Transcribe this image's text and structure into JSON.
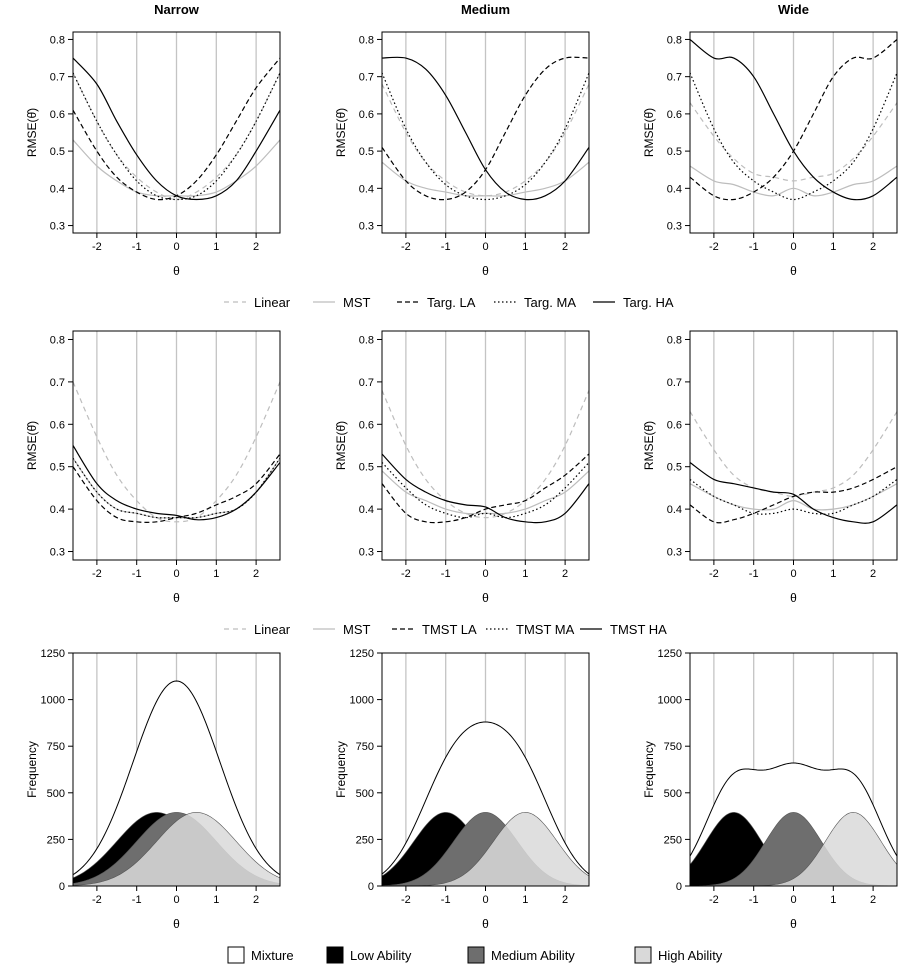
{
  "figure": {
    "column_titles": [
      "Narrow",
      "Medium",
      "Wide"
    ],
    "legend_row1": [
      "Linear",
      "MST",
      "Targ. LA",
      "Targ. MA",
      "Targ. HA"
    ],
    "legend_row2": [
      "Linear",
      "MST",
      "TMST LA",
      "TMST MA",
      "TMST HA"
    ],
    "legend_row3": [
      "Mixture",
      "Low Ability",
      "Medium Ability",
      "High Ability"
    ]
  },
  "chart_data": [
    {
      "type": "line",
      "row": 0,
      "col": 0,
      "title": "Narrow",
      "xlabel": "θ",
      "ylabel": "RMSE(θ̂)",
      "xlim": [
        -2.6,
        2.6
      ],
      "ylim": [
        0.28,
        0.82
      ],
      "xticks": [
        -2,
        -1,
        0,
        1,
        2
      ],
      "yticks": [
        0.3,
        0.4,
        0.5,
        0.6,
        0.7,
        0.8
      ],
      "x": [
        -2.6,
        -2.0,
        -1.5,
        -1.0,
        -0.5,
        0.0,
        0.5,
        1.0,
        1.5,
        2.0,
        2.6
      ],
      "series": [
        {
          "name": "Linear",
          "values": [
            0.71,
            0.58,
            0.49,
            0.43,
            0.39,
            0.37,
            0.39,
            0.43,
            0.49,
            0.58,
            0.71
          ]
        },
        {
          "name": "MST",
          "values": [
            0.53,
            0.46,
            0.42,
            0.39,
            0.38,
            0.38,
            0.38,
            0.39,
            0.42,
            0.46,
            0.53
          ]
        },
        {
          "name": "Targ. LA",
          "values": [
            0.61,
            0.5,
            0.43,
            0.39,
            0.37,
            0.38,
            0.42,
            0.49,
            0.58,
            0.67,
            0.75
          ]
        },
        {
          "name": "Targ. MA",
          "values": [
            0.71,
            0.58,
            0.49,
            0.42,
            0.38,
            0.37,
            0.38,
            0.42,
            0.49,
            0.58,
            0.71
          ]
        },
        {
          "name": "Targ. HA",
          "values": [
            0.75,
            0.68,
            0.58,
            0.49,
            0.42,
            0.38,
            0.37,
            0.38,
            0.42,
            0.5,
            0.61
          ]
        }
      ]
    },
    {
      "type": "line",
      "row": 0,
      "col": 1,
      "title": "Medium",
      "xlabel": "θ",
      "ylabel": "RMSE(θ̂)",
      "xlim": [
        -2.6,
        2.6
      ],
      "ylim": [
        0.28,
        0.82
      ],
      "xticks": [
        -2,
        -1,
        0,
        1,
        2
      ],
      "yticks": [
        0.3,
        0.4,
        0.5,
        0.6,
        0.7,
        0.8
      ],
      "x": [
        -2.6,
        -2.0,
        -1.5,
        -1.0,
        -0.5,
        0.0,
        0.5,
        1.0,
        1.5,
        2.0,
        2.6
      ],
      "series": [
        {
          "name": "Linear",
          "values": [
            0.68,
            0.55,
            0.47,
            0.42,
            0.39,
            0.38,
            0.39,
            0.42,
            0.47,
            0.55,
            0.68
          ]
        },
        {
          "name": "MST",
          "values": [
            0.47,
            0.42,
            0.4,
            0.39,
            0.38,
            0.38,
            0.38,
            0.39,
            0.4,
            0.42,
            0.47
          ]
        },
        {
          "name": "Targ. LA",
          "values": [
            0.51,
            0.42,
            0.38,
            0.37,
            0.39,
            0.45,
            0.55,
            0.65,
            0.72,
            0.75,
            0.75
          ]
        },
        {
          "name": "Targ. MA",
          "values": [
            0.71,
            0.56,
            0.47,
            0.41,
            0.38,
            0.37,
            0.38,
            0.41,
            0.47,
            0.56,
            0.71
          ]
        },
        {
          "name": "Targ. HA",
          "values": [
            0.75,
            0.75,
            0.72,
            0.65,
            0.55,
            0.45,
            0.39,
            0.37,
            0.38,
            0.42,
            0.51
          ]
        }
      ]
    },
    {
      "type": "line",
      "row": 0,
      "col": 2,
      "title": "Wide",
      "xlabel": "θ",
      "ylabel": "RMSE(θ̂)",
      "xlim": [
        -2.6,
        2.6
      ],
      "ylim": [
        0.28,
        0.82
      ],
      "xticks": [
        -2,
        -1,
        0,
        1,
        2
      ],
      "yticks": [
        0.3,
        0.4,
        0.5,
        0.6,
        0.7,
        0.8
      ],
      "x": [
        -2.6,
        -2.0,
        -1.5,
        -1.0,
        -0.5,
        0.0,
        0.5,
        1.0,
        1.5,
        2.0,
        2.6
      ],
      "series": [
        {
          "name": "Linear",
          "values": [
            0.63,
            0.54,
            0.48,
            0.44,
            0.43,
            0.42,
            0.43,
            0.44,
            0.48,
            0.54,
            0.63
          ]
        },
        {
          "name": "MST",
          "values": [
            0.46,
            0.42,
            0.41,
            0.39,
            0.38,
            0.4,
            0.38,
            0.39,
            0.41,
            0.42,
            0.46
          ]
        },
        {
          "name": "Targ. LA",
          "values": [
            0.43,
            0.38,
            0.37,
            0.39,
            0.43,
            0.5,
            0.6,
            0.7,
            0.75,
            0.75,
            0.8
          ]
        },
        {
          "name": "Targ. MA",
          "values": [
            0.71,
            0.56,
            0.47,
            0.42,
            0.39,
            0.37,
            0.39,
            0.42,
            0.47,
            0.56,
            0.71
          ]
        },
        {
          "name": "Targ. HA",
          "values": [
            0.8,
            0.75,
            0.75,
            0.7,
            0.6,
            0.5,
            0.43,
            0.39,
            0.37,
            0.38,
            0.43
          ]
        }
      ]
    },
    {
      "type": "line",
      "row": 1,
      "col": 0,
      "title": "Narrow",
      "xlabel": "θ",
      "ylabel": "RMSE(θ̂)",
      "xlim": [
        -2.6,
        2.6
      ],
      "ylim": [
        0.28,
        0.82
      ],
      "xticks": [
        -2,
        -1,
        0,
        1,
        2
      ],
      "yticks": [
        0.3,
        0.4,
        0.5,
        0.6,
        0.7,
        0.8
      ],
      "x": [
        -2.6,
        -2.0,
        -1.5,
        -1.0,
        -0.5,
        0.0,
        0.5,
        1.0,
        1.5,
        2.0,
        2.6
      ],
      "series": [
        {
          "name": "Linear",
          "values": [
            0.7,
            0.57,
            0.48,
            0.42,
            0.38,
            0.37,
            0.38,
            0.42,
            0.48,
            0.57,
            0.7
          ]
        },
        {
          "name": "MST",
          "values": [
            0.52,
            0.44,
            0.4,
            0.39,
            0.38,
            0.38,
            0.38,
            0.39,
            0.4,
            0.44,
            0.52
          ]
        },
        {
          "name": "TMST LA",
          "values": [
            0.5,
            0.42,
            0.38,
            0.37,
            0.37,
            0.38,
            0.39,
            0.41,
            0.43,
            0.46,
            0.53
          ]
        },
        {
          "name": "TMST MA",
          "values": [
            0.52,
            0.44,
            0.4,
            0.39,
            0.38,
            0.38,
            0.38,
            0.39,
            0.4,
            0.44,
            0.52
          ]
        },
        {
          "name": "TMST HA",
          "values": [
            0.55,
            0.46,
            0.42,
            0.4,
            0.39,
            0.385,
            0.375,
            0.38,
            0.4,
            0.44,
            0.51
          ]
        }
      ]
    },
    {
      "type": "line",
      "row": 1,
      "col": 1,
      "title": "Medium",
      "xlabel": "θ",
      "ylabel": "RMSE(θ̂)",
      "xlim": [
        -2.6,
        2.6
      ],
      "ylim": [
        0.28,
        0.82
      ],
      "xticks": [
        -2,
        -1,
        0,
        1,
        2
      ],
      "yticks": [
        0.3,
        0.4,
        0.5,
        0.6,
        0.7,
        0.8
      ],
      "x": [
        -2.6,
        -2.0,
        -1.5,
        -1.0,
        -0.5,
        0.0,
        0.5,
        1.0,
        1.5,
        2.0,
        2.6
      ],
      "series": [
        {
          "name": "Linear",
          "values": [
            0.68,
            0.55,
            0.47,
            0.42,
            0.39,
            0.38,
            0.39,
            0.42,
            0.47,
            0.55,
            0.68
          ]
        },
        {
          "name": "MST",
          "values": [
            0.49,
            0.44,
            0.42,
            0.4,
            0.39,
            0.39,
            0.39,
            0.4,
            0.42,
            0.44,
            0.49
          ]
        },
        {
          "name": "TMST LA",
          "values": [
            0.46,
            0.39,
            0.37,
            0.37,
            0.38,
            0.4,
            0.41,
            0.42,
            0.45,
            0.48,
            0.53
          ]
        },
        {
          "name": "TMST MA",
          "values": [
            0.51,
            0.45,
            0.41,
            0.39,
            0.38,
            0.39,
            0.38,
            0.39,
            0.41,
            0.45,
            0.51
          ]
        },
        {
          "name": "TMST HA",
          "values": [
            0.53,
            0.47,
            0.44,
            0.42,
            0.41,
            0.405,
            0.38,
            0.37,
            0.37,
            0.39,
            0.46
          ]
        }
      ]
    },
    {
      "type": "line",
      "row": 1,
      "col": 2,
      "title": "Wide",
      "xlabel": "θ",
      "ylabel": "RMSE(θ̂)",
      "xlim": [
        -2.6,
        2.6
      ],
      "ylim": [
        0.28,
        0.82
      ],
      "xticks": [
        -2,
        -1,
        0,
        1,
        2
      ],
      "yticks": [
        0.3,
        0.4,
        0.5,
        0.6,
        0.7,
        0.8
      ],
      "x": [
        -2.6,
        -2.0,
        -1.5,
        -1.0,
        -0.5,
        0.0,
        0.5,
        1.0,
        1.5,
        2.0,
        2.6
      ],
      "series": [
        {
          "name": "Linear",
          "values": [
            0.63,
            0.54,
            0.48,
            0.45,
            0.44,
            0.43,
            0.44,
            0.45,
            0.48,
            0.54,
            0.63
          ]
        },
        {
          "name": "MST",
          "values": [
            0.46,
            0.43,
            0.41,
            0.4,
            0.4,
            0.42,
            0.4,
            0.4,
            0.41,
            0.43,
            0.46
          ]
        },
        {
          "name": "TMST LA",
          "values": [
            0.41,
            0.37,
            0.375,
            0.39,
            0.41,
            0.43,
            0.44,
            0.44,
            0.45,
            0.47,
            0.5
          ]
        },
        {
          "name": "TMST MA",
          "values": [
            0.47,
            0.43,
            0.41,
            0.39,
            0.39,
            0.4,
            0.39,
            0.39,
            0.41,
            0.43,
            0.47
          ]
        },
        {
          "name": "TMST HA",
          "values": [
            0.51,
            0.47,
            0.46,
            0.45,
            0.44,
            0.435,
            0.4,
            0.38,
            0.37,
            0.37,
            0.41
          ]
        }
      ]
    },
    {
      "type": "area",
      "row": 2,
      "col": 0,
      "title": "Narrow",
      "xlabel": "θ",
      "ylabel": "Frequency",
      "xlim": [
        -2.6,
        2.6
      ],
      "ylim": [
        0,
        1250
      ],
      "xticks": [
        -2,
        -1,
        0,
        1,
        2
      ],
      "yticks": [
        0,
        250,
        500,
        750,
        1000,
        1250
      ],
      "component_means": {
        "Low Ability": -0.5,
        "Medium Ability": 0,
        "High Ability": 0.5
      },
      "component_sd": 1.0,
      "component_peak": 395,
      "mixture_peak": 1100
    },
    {
      "type": "area",
      "row": 2,
      "col": 1,
      "title": "Medium",
      "xlabel": "θ",
      "ylabel": "Frequency",
      "xlim": [
        -2.6,
        2.6
      ],
      "ylim": [
        0,
        1250
      ],
      "xticks": [
        -2,
        -1,
        0,
        1,
        2
      ],
      "yticks": [
        0,
        250,
        500,
        750,
        1000,
        1250
      ],
      "component_means": {
        "Low Ability": -1.0,
        "Medium Ability": 0,
        "High Ability": 1.0
      },
      "component_sd": 0.8,
      "component_peak": 395,
      "mixture_peak": 880
    },
    {
      "type": "area",
      "row": 2,
      "col": 2,
      "title": "Wide",
      "xlabel": "θ",
      "ylabel": "Frequency",
      "xlim": [
        -2.6,
        2.6
      ],
      "ylim": [
        0,
        1250
      ],
      "xticks": [
        -2,
        -1,
        0,
        1,
        2
      ],
      "yticks": [
        0,
        250,
        500,
        750,
        1000,
        1250
      ],
      "component_means": {
        "Low Ability": -1.5,
        "Medium Ability": 0,
        "High Ability": 1.5
      },
      "component_sd": 0.7,
      "component_peak": 395,
      "mixture_peak": 660
    }
  ]
}
